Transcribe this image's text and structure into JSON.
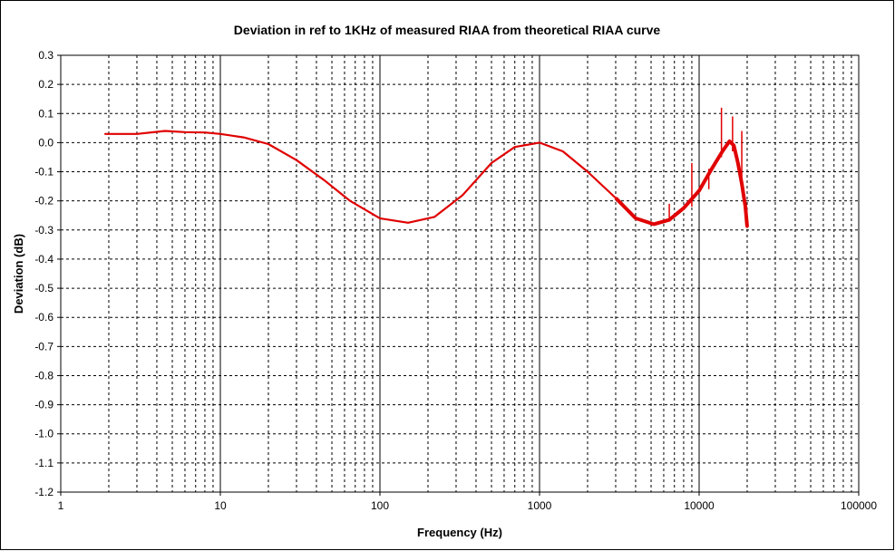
{
  "chart_data": {
    "type": "line",
    "title": "Deviation in ref to 1KHz of measured RIAA from theoretical RIAA curve",
    "xlabel": "Frequency (Hz)",
    "ylabel": "Deviation (dB)",
    "x_scale": "log",
    "xlim": [
      1,
      100000
    ],
    "ylim": [
      -1.2,
      0.3
    ],
    "grid": true,
    "legend": "none",
    "x_tick_labels": [
      "1",
      "10",
      "100",
      "1000",
      "10000",
      "100000"
    ],
    "y_tick_labels": [
      "0.3",
      "0.2",
      "0.1",
      "0.0",
      "-0.1",
      "-0.2",
      "-0.3",
      "-0.4",
      "-0.5",
      "-0.6",
      "-0.7",
      "-0.8",
      "-0.9",
      "-1.0",
      "-1.1",
      "-1.2"
    ],
    "series": [
      {
        "color": "#e00000",
        "x": [
          1.9,
          3,
          4.5,
          6,
          8,
          10,
          14,
          20,
          30,
          45,
          65,
          100,
          150,
          220,
          330,
          500,
          700,
          1000,
          1400,
          2000,
          3000,
          4000,
          5200,
          6500,
          8000,
          10000,
          12000,
          14000,
          15500,
          16500,
          17500,
          18500,
          19500,
          20000
        ],
        "y": [
          0.03,
          0.03,
          0.04,
          0.036,
          0.035,
          0.03,
          0.018,
          -0.005,
          -0.06,
          -0.13,
          -0.2,
          -0.26,
          -0.275,
          -0.255,
          -0.18,
          -0.07,
          -0.015,
          0.0,
          -0.03,
          -0.1,
          -0.19,
          -0.26,
          -0.28,
          -0.265,
          -0.225,
          -0.165,
          -0.09,
          -0.03,
          0.005,
          -0.01,
          -0.07,
          -0.14,
          -0.22,
          -0.29
        ]
      }
    ],
    "spikes": [
      {
        "x": 6500,
        "y_from": -0.26,
        "y_to": -0.21
      },
      {
        "x": 9000,
        "y_from": -0.22,
        "y_to": -0.07
      },
      {
        "x": 11500,
        "y_from": -0.16,
        "y_to": -0.09
      },
      {
        "x": 13800,
        "y_from": -0.05,
        "y_to": 0.12
      },
      {
        "x": 16200,
        "y_from": -0.03,
        "y_to": 0.09
      },
      {
        "x": 18500,
        "y_from": -0.15,
        "y_to": 0.04
      }
    ]
  }
}
